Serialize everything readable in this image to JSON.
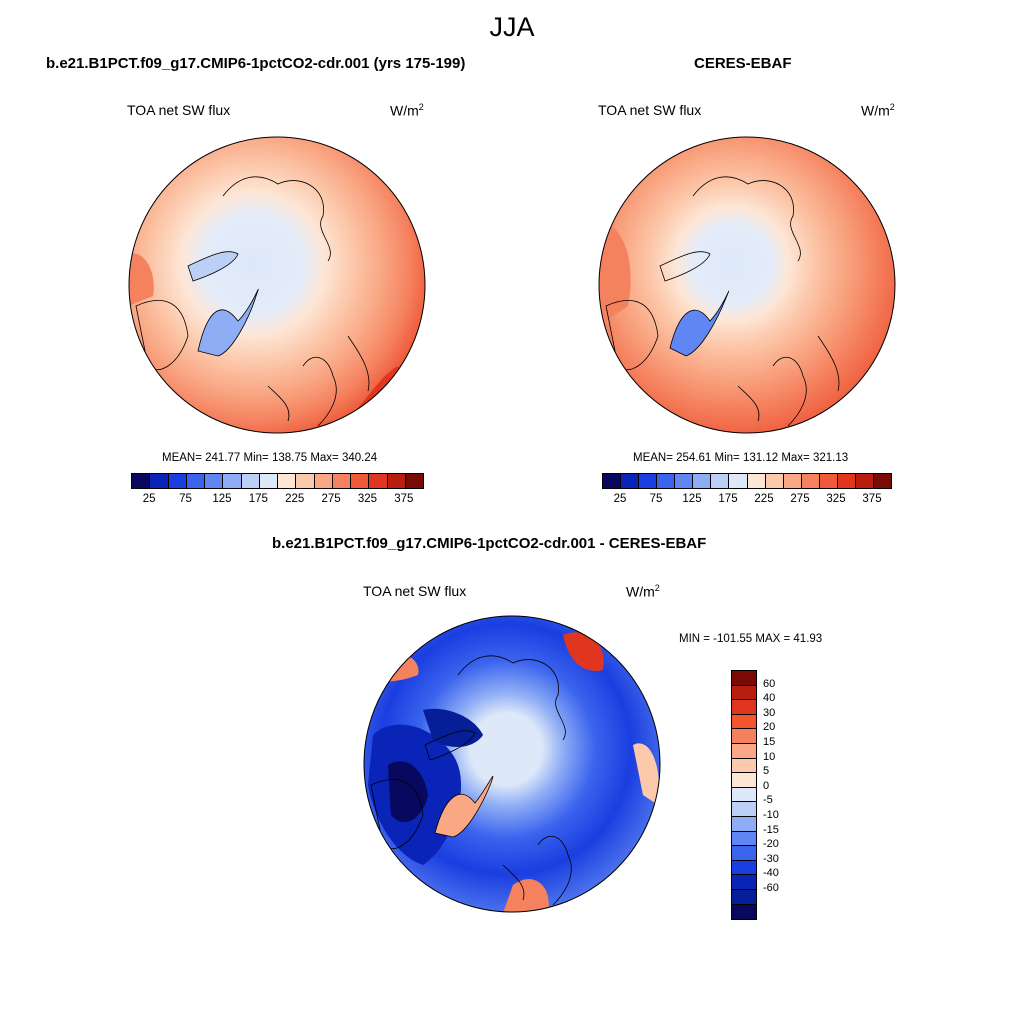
{
  "title": "JJA",
  "panels": {
    "model": {
      "title": "b.e21.B1PCT.f09_g17.CMIP6-1pctCO2-cdr.001 (yrs 175-199)",
      "variable": "TOA net SW flux",
      "unit": "W/m",
      "unit_sup": "2",
      "stats": "MEAN= 241.77  Min= 138.75  Max= 340.24"
    },
    "obs": {
      "title": "CERES-EBAF",
      "variable": "TOA net SW flux",
      "unit": "W/m",
      "unit_sup": "2",
      "stats": "MEAN= 254.61  Min= 131.12  Max= 321.13"
    },
    "diff": {
      "title": "b.e21.B1PCT.f09_g17.CMIP6-1pctCO2-cdr.001 - CERES-EBAF",
      "variable": "TOA net SW flux",
      "unit": "W/m",
      "unit_sup": "2",
      "stats": "MIN = -101.55 MAX =  41.93"
    }
  },
  "colorbars": {
    "absolute": {
      "colors": [
        "#08085e",
        "#0a24b8",
        "#1a3ee0",
        "#3a63ee",
        "#5f86f2",
        "#8fadf5",
        "#bcd0f7",
        "#dde8f9",
        "#fde6d6",
        "#fcc9ac",
        "#f9a784",
        "#f5825f",
        "#ef5a3a",
        "#e0361f",
        "#b81f0f",
        "#7a0a06"
      ],
      "ticks": [
        "25",
        "75",
        "125",
        "175",
        "225",
        "275",
        "325",
        "375"
      ]
    },
    "difference": {
      "colors": [
        "#7a0a06",
        "#b81f0f",
        "#e0361f",
        "#f5552e",
        "#f5825f",
        "#f9a784",
        "#fcc9ac",
        "#fde6d6",
        "#dde8f9",
        "#bcd0f7",
        "#8fadf5",
        "#5f86f2",
        "#3a63ee",
        "#1a3ee0",
        "#0a24b8",
        "#061e98",
        "#08085e"
      ],
      "ticks": [
        "60",
        "40",
        "30",
        "20",
        "15",
        "10",
        "5",
        "0",
        "-5",
        "-10",
        "-15",
        "-20",
        "-30",
        "-40",
        "-60"
      ]
    }
  }
}
